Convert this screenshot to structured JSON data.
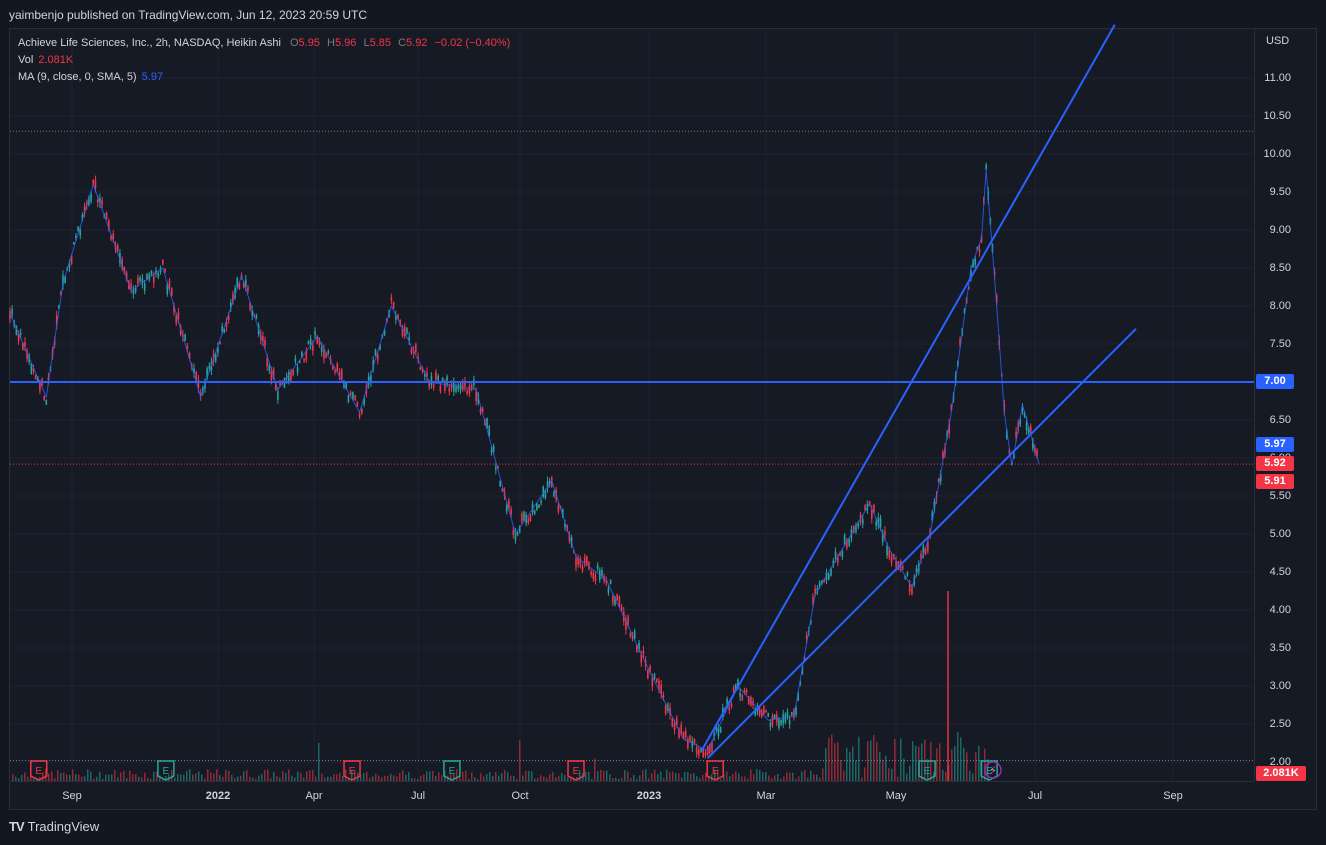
{
  "publisher": "yaimbenjo published on TradingView.com, Jun 12, 2023 20:59 UTC",
  "legend": {
    "symbol": "Achieve Life Sciences, Inc., 2h, NASDAQ, Heikin Ashi",
    "o_label": "O",
    "o_value": "5.95",
    "h_label": "H",
    "h_value": "5.96",
    "l_label": "L",
    "l_value": "5.85",
    "c_label": "C",
    "c_value": "5.92",
    "change": "−0.02 (−0.40%)",
    "vol_label": "Vol",
    "vol_value": "2.081K",
    "ma_label": "MA (9, close, 0, SMA, 5)",
    "ma_value": "5.97"
  },
  "price_axis": {
    "currency": "USD",
    "ticks": [
      "11.00",
      "10.50",
      "10.00",
      "9.50",
      "9.00",
      "8.50",
      "8.00",
      "7.50",
      "7.00",
      "6.50",
      "6.00",
      "5.50",
      "5.00",
      "4.50",
      "4.00",
      "3.50",
      "3.00",
      "2.50",
      "2.00"
    ],
    "tags": [
      {
        "text": "7.00",
        "price": 7.0,
        "color": "#2962ff"
      },
      {
        "text": "5.97",
        "price": 5.97,
        "color": "#2962ff"
      },
      {
        "text": "5.92",
        "price": 5.92,
        "color": "#f23645"
      },
      {
        "text": "5.91",
        "price": 5.91,
        "color": "#f23645"
      }
    ],
    "volume_tag": "2.081K"
  },
  "time_axis": {
    "ticks": [
      "Sep",
      "2022",
      "Apr",
      "Jul",
      "Oct",
      "2023",
      "Mar",
      "May",
      "Jul",
      "Sep"
    ]
  },
  "footer": {
    "brand": "TradingView",
    "logo": "TV"
  },
  "colors": {
    "up": "#26a69a",
    "down": "#f23645",
    "line": "#2962ff",
    "bg": "#161a25",
    "grid": "#1f2330"
  },
  "chart_data": {
    "type": "candlestick",
    "title": "Achieve Life Sciences, Inc., 2h, NASDAQ, Heikin Ashi",
    "ylim": [
      1.95,
      11.4
    ],
    "grid": true,
    "x_ticks": [
      "Sep",
      "2022",
      "Apr",
      "Jul",
      "Oct",
      "2023",
      "Mar",
      "May",
      "Jul",
      "Sep"
    ],
    "price_path": [
      {
        "x": "2021-08-01",
        "y": 7.9
      },
      {
        "x": "2021-08-25",
        "y": 6.8
      },
      {
        "x": "2021-09-05",
        "y": 8.3
      },
      {
        "x": "2021-09-25",
        "y": 9.6
      },
      {
        "x": "2021-10-20",
        "y": 8.2
      },
      {
        "x": "2021-11-10",
        "y": 8.5
      },
      {
        "x": "2021-12-05",
        "y": 6.8
      },
      {
        "x": "2022-01-01",
        "y": 8.4
      },
      {
        "x": "2022-01-25",
        "y": 6.9
      },
      {
        "x": "2022-02-20",
        "y": 7.6
      },
      {
        "x": "2022-03-20",
        "y": 6.6
      },
      {
        "x": "2022-04-10",
        "y": 8.0
      },
      {
        "x": "2022-05-05",
        "y": 7.0
      },
      {
        "x": "2022-06-05",
        "y": 6.9
      },
      {
        "x": "2022-07-01",
        "y": 5.0
      },
      {
        "x": "2022-07-25",
        "y": 5.7
      },
      {
        "x": "2022-08-10",
        "y": 4.7
      },
      {
        "x": "2022-08-30",
        "y": 4.4
      },
      {
        "x": "2022-09-25",
        "y": 3.3
      },
      {
        "x": "2022-10-20",
        "y": 2.3
      },
      {
        "x": "2022-11-05",
        "y": 2.15
      },
      {
        "x": "2022-11-25",
        "y": 3.0
      },
      {
        "x": "2022-12-15",
        "y": 2.55
      },
      {
        "x": "2023-01-01",
        "y": 2.6
      },
      {
        "x": "2023-01-15",
        "y": 4.2
      },
      {
        "x": "2023-02-05",
        "y": 4.9
      },
      {
        "x": "2023-02-20",
        "y": 5.4
      },
      {
        "x": "2023-03-05",
        "y": 4.8
      },
      {
        "x": "2023-03-20",
        "y": 4.3
      },
      {
        "x": "2023-04-01",
        "y": 5.0
      },
      {
        "x": "2023-04-15",
        "y": 6.6
      },
      {
        "x": "2023-04-28",
        "y": 8.5
      },
      {
        "x": "2023-05-05",
        "y": 8.9
      },
      {
        "x": "2023-05-08",
        "y": 9.8
      },
      {
        "x": "2023-05-15",
        "y": 8.0
      },
      {
        "x": "2023-05-20",
        "y": 6.6
      },
      {
        "x": "2023-05-25",
        "y": 5.9
      },
      {
        "x": "2023-06-01",
        "y": 6.7
      },
      {
        "x": "2023-06-12",
        "y": 5.92
      }
    ],
    "trendlines": [
      {
        "from": {
          "x": "2022-11-01",
          "y": 2.15
        },
        "to": {
          "x": "2023-08-01",
          "y": 11.7
        }
      },
      {
        "from": {
          "x": "2022-11-05",
          "y": 2.05
        },
        "to": {
          "x": "2023-08-15",
          "y": 7.7
        }
      }
    ],
    "horizontal_lines": [
      7.0,
      5.92,
      10.3,
      2.02
    ],
    "moving_average": {
      "name": "MA (9, close, 0, SMA, 5)",
      "last": 5.97
    },
    "last_price": 5.92,
    "volume": {
      "last": "2.081K"
    },
    "earnings_markers": [
      {
        "x": "2021-08-20",
        "color": "#f23645"
      },
      {
        "x": "2021-11-12",
        "color": "#26a69a"
      },
      {
        "x": "2022-03-15",
        "color": "#f23645"
      },
      {
        "x": "2022-05-20",
        "color": "#26a69a"
      },
      {
        "x": "2022-08-10",
        "color": "#f23645"
      },
      {
        "x": "2022-11-10",
        "color": "#f23645"
      },
      {
        "x": "2023-03-30",
        "color": "#26a69a"
      },
      {
        "x": "2023-05-10",
        "color": "#26a69a"
      }
    ]
  }
}
